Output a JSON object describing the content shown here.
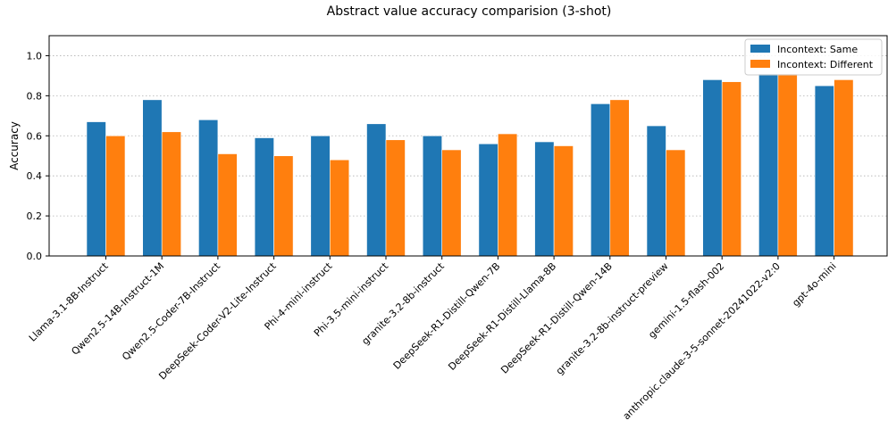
{
  "chart_data": {
    "type": "bar",
    "title": "Abstract value accuracy comparision (3-shot)",
    "xlabel": "",
    "ylabel": "Accuracy",
    "ylim": [
      0,
      1.1
    ],
    "yticks": [
      "0.0",
      "0.2",
      "0.4",
      "0.6",
      "0.8",
      "1.0"
    ],
    "grid": "y-dotted",
    "legend_position": "top-right",
    "categories": [
      "Llama-3.1-8B-Instruct",
      "Qwen2.5-14B-Instruct-1M",
      "Qwen2.5-Coder-7B-Instruct",
      "DeepSeek-Coder-V2-Lite-Instruct",
      "Phi-4-mini-instruct",
      "Phi-3.5-mini-instruct",
      "granite-3.2-8b-instruct",
      "DeepSeek-R1-Distill-Qwen-7B",
      "DeepSeek-R1-Distill-Llama-8B",
      "DeepSeek-R1-Distill-Qwen-14B",
      "granite-3.2-8b-instruct-preview",
      "gemini-1.5-flash-002",
      "anthropic.claude-3-5-sonnet-20241022-v2:0",
      "gpt-4o-mini"
    ],
    "series": [
      {
        "name": "Incontext: Same",
        "color": "#1f77b4",
        "values": [
          0.67,
          0.78,
          0.68,
          0.59,
          0.6,
          0.66,
          0.6,
          0.56,
          0.57,
          0.76,
          0.65,
          0.88,
          0.91,
          0.85
        ]
      },
      {
        "name": "Incontext: Different",
        "color": "#ff7f0e",
        "values": [
          0.6,
          0.62,
          0.51,
          0.5,
          0.48,
          0.58,
          0.53,
          0.61,
          0.55,
          0.78,
          0.53,
          0.87,
          0.91,
          0.88
        ]
      }
    ]
  }
}
